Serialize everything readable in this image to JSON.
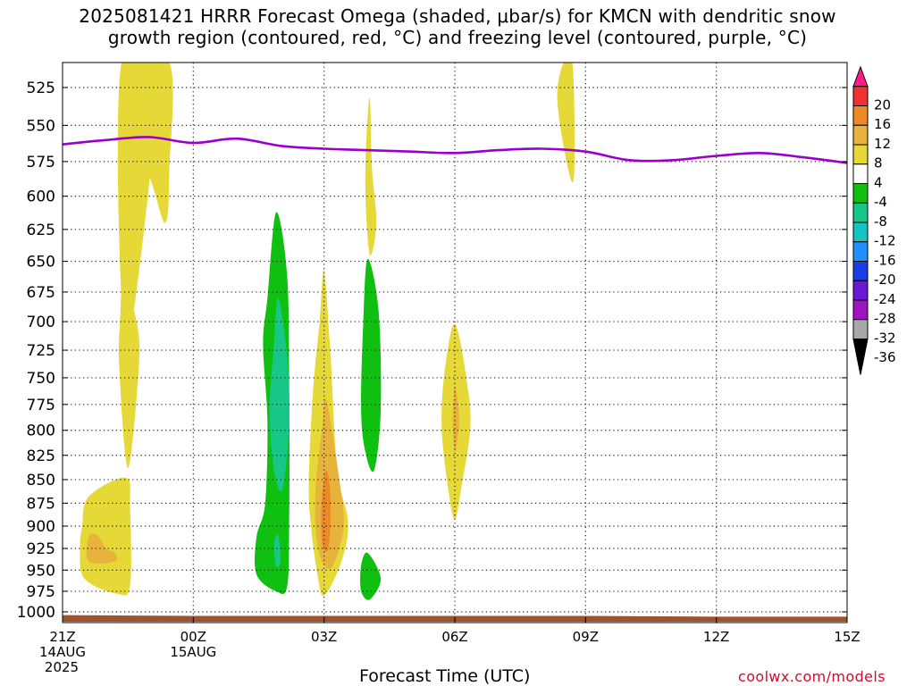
{
  "title_line1": "2025081421 HRRR Forecast Omega (shaded, μbar/s) for KMCN with dendritic snow",
  "title_line2": "growth region (contoured, red, °C) and freezing level (contoured, purple, °C)",
  "credit": "coolwx.com/models",
  "chart_data": {
    "type": "heatmap",
    "title": "2025081421 HRRR Forecast Omega (shaded, μbar/s) for KMCN with dendritic snow growth region (contoured, red, °C) and freezing level (contoured, purple, °C)",
    "xlabel": "Forecast Time (UTC)",
    "ylabel": "",
    "x_unit": "hours after 2025-08-14 21Z",
    "xlim": [
      0,
      18
    ],
    "ylim": [
      1010,
      500
    ],
    "y_scale": "log-pressure",
    "grid": true,
    "x_ticks": [
      {
        "value": 0,
        "label": "21Z",
        "sub1": "14AUG",
        "sub2": "2025"
      },
      {
        "value": 3,
        "label": "00Z",
        "sub1": "15AUG",
        "sub2": ""
      },
      {
        "value": 6,
        "label": "03Z",
        "sub1": "",
        "sub2": ""
      },
      {
        "value": 9,
        "label": "06Z",
        "sub1": "",
        "sub2": ""
      },
      {
        "value": 12,
        "label": "09Z",
        "sub1": "",
        "sub2": ""
      },
      {
        "value": 15,
        "label": "12Z",
        "sub1": "",
        "sub2": ""
      },
      {
        "value": 18,
        "label": "15Z",
        "sub1": "",
        "sub2": ""
      }
    ],
    "y_ticks": [
      525,
      550,
      575,
      600,
      625,
      650,
      675,
      700,
      725,
      750,
      775,
      800,
      825,
      850,
      875,
      900,
      925,
      950,
      975,
      1000
    ],
    "freezing_level": {
      "color": "#9900cc",
      "x": [
        0,
        1,
        2,
        3,
        4,
        5,
        6,
        7,
        8,
        9,
        10,
        11,
        12,
        13,
        14,
        15,
        16,
        17,
        18
      ],
      "pressure": [
        563,
        560,
        558,
        562,
        559,
        564,
        566,
        567,
        568,
        569,
        567,
        566,
        568,
        574,
        574,
        571,
        569,
        572,
        576
      ]
    },
    "surface_ground": {
      "color": "#a0522d",
      "x": [
        0,
        3,
        6,
        9,
        12,
        15,
        18
      ],
      "pressure": [
        1004,
        1005,
        1005,
        1005,
        1005,
        1006,
        1006
      ]
    },
    "colorbar": {
      "levels": [
        20,
        16,
        12,
        8,
        4,
        -4,
        -8,
        -12,
        -16,
        -20,
        -24,
        -28,
        -32,
        -36
      ],
      "colors": [
        "#ff1a8c",
        "#ef3333",
        "#ed8a25",
        "#e8b33a",
        "#e6d836",
        "#ffffff",
        "#10c010",
        "#16c787",
        "#14c3c3",
        "#1e90ff",
        "#1a3ee6",
        "#6a18d6",
        "#a013c0",
        "#a8a8a8",
        "#000000"
      ]
    },
    "omega_regions": [
      {
        "level": 4,
        "color": "#e6d836",
        "points": [
          [
            1.35,
            505
          ],
          [
            2.45,
            505
          ],
          [
            2.45,
            580
          ],
          [
            2.35,
            620
          ],
          [
            1.85,
            585
          ],
          [
            1.4,
            700
          ]
        ]
      },
      {
        "level": 4,
        "color": "#e6d836",
        "points": [
          [
            1.4,
            505
          ],
          [
            2.2,
            505
          ],
          [
            1.6,
            700
          ],
          [
            1.4,
            668
          ]
        ]
      },
      {
        "level": 4,
        "color": "#e6d836",
        "points": [
          [
            1.4,
            668
          ],
          [
            1.7,
            700
          ],
          [
            1.75,
            740
          ],
          [
            1.5,
            838
          ],
          [
            1.3,
            740
          ],
          [
            1.32,
            700
          ]
        ]
      },
      {
        "level": 4,
        "color": "#e6d836",
        "points": [
          [
            0.6,
            868
          ],
          [
            1.45,
            848
          ],
          [
            1.55,
            880
          ],
          [
            1.55,
            968
          ],
          [
            1.25,
            978
          ],
          [
            0.5,
            960
          ],
          [
            0.4,
            925
          ],
          [
            0.45,
            900
          ]
        ]
      },
      {
        "level": 8,
        "color": "#e8b33a",
        "points": [
          [
            0.6,
            912
          ],
          [
            0.8,
            910
          ],
          [
            1.0,
            925
          ],
          [
            1.2,
            930
          ],
          [
            1.2,
            940
          ],
          [
            0.6,
            940
          ]
        ]
      },
      {
        "level": 4,
        "color": "#e6d836",
        "points": [
          [
            6.0,
            658
          ],
          [
            6.15,
            730
          ],
          [
            6.3,
            840
          ],
          [
            6.55,
            895
          ],
          [
            6.4,
            940
          ],
          [
            6.0,
            980
          ],
          [
            5.85,
            955
          ],
          [
            5.7,
            900
          ],
          [
            5.65,
            850
          ],
          [
            5.75,
            760
          ],
          [
            5.9,
            700
          ]
        ]
      },
      {
        "level": 8,
        "color": "#e8b33a",
        "points": [
          [
            6.05,
            770
          ],
          [
            6.35,
            850
          ],
          [
            6.45,
            900
          ],
          [
            6.2,
            945
          ],
          [
            5.95,
            940
          ],
          [
            5.8,
            900
          ],
          [
            5.82,
            850
          ],
          [
            5.95,
            800
          ]
        ]
      },
      {
        "level": 12,
        "color": "#ed8a25",
        "points": [
          [
            6.05,
            840
          ],
          [
            6.15,
            870
          ],
          [
            6.1,
            925
          ],
          [
            5.95,
            918
          ],
          [
            5.95,
            870
          ]
        ]
      },
      {
        "level": 4,
        "color": "#e6d836",
        "points": [
          [
            9.0,
            702
          ],
          [
            9.3,
            760
          ],
          [
            9.35,
            800
          ],
          [
            9.15,
            858
          ],
          [
            9.0,
            893
          ],
          [
            8.85,
            860
          ],
          [
            8.7,
            800
          ],
          [
            8.75,
            750
          ]
        ]
      },
      {
        "level": 8,
        "color": "#e8b33a",
        "points": [
          [
            9.0,
            757
          ],
          [
            9.1,
            790
          ],
          [
            9.0,
            822
          ],
          [
            8.95,
            790
          ]
        ]
      },
      {
        "level": 4,
        "color": "#e6d836",
        "points": [
          [
            7.05,
            532
          ],
          [
            7.1,
            580
          ],
          [
            7.2,
            620
          ],
          [
            7.05,
            645
          ],
          [
            6.95,
            600
          ],
          [
            6.97,
            560
          ]
        ]
      },
      {
        "level": 4,
        "color": "#e6d836",
        "points": [
          [
            11.5,
            502
          ],
          [
            11.7,
            510
          ],
          [
            11.75,
            565
          ],
          [
            11.7,
            590
          ],
          [
            11.5,
            565
          ],
          [
            11.35,
            530
          ]
        ]
      },
      {
        "level": -4,
        "color": "#10c010",
        "points": [
          [
            4.9,
            612
          ],
          [
            5.15,
            660
          ],
          [
            5.2,
            750
          ],
          [
            5.2,
            900
          ],
          [
            5.15,
            970
          ],
          [
            4.9,
            975
          ],
          [
            4.45,
            955
          ],
          [
            4.45,
            912
          ],
          [
            4.65,
            875
          ],
          [
            4.7,
            790
          ],
          [
            4.6,
            720
          ],
          [
            4.7,
            680
          ]
        ]
      },
      {
        "level": -8,
        "color": "#16c787",
        "points": [
          [
            4.95,
            680
          ],
          [
            5.15,
            730
          ],
          [
            5.2,
            790
          ],
          [
            5.05,
            860
          ],
          [
            4.85,
            840
          ],
          [
            4.75,
            780
          ],
          [
            4.85,
            720
          ]
        ]
      },
      {
        "level": -8,
        "color": "#16c787",
        "points": [
          [
            4.95,
            910
          ],
          [
            5.0,
            940
          ],
          [
            4.9,
            945
          ],
          [
            4.85,
            920
          ]
        ]
      },
      {
        "level": -4,
        "color": "#10c010",
        "points": [
          [
            7.0,
            648
          ],
          [
            7.25,
            690
          ],
          [
            7.3,
            780
          ],
          [
            7.15,
            840
          ],
          [
            6.95,
            822
          ],
          [
            6.85,
            780
          ],
          [
            6.9,
            700
          ]
        ]
      },
      {
        "level": -4,
        "color": "#10c010",
        "points": [
          [
            7.0,
            930
          ],
          [
            7.3,
            960
          ],
          [
            7.05,
            985
          ],
          [
            6.85,
            975
          ],
          [
            6.85,
            945
          ]
        ]
      }
    ]
  }
}
